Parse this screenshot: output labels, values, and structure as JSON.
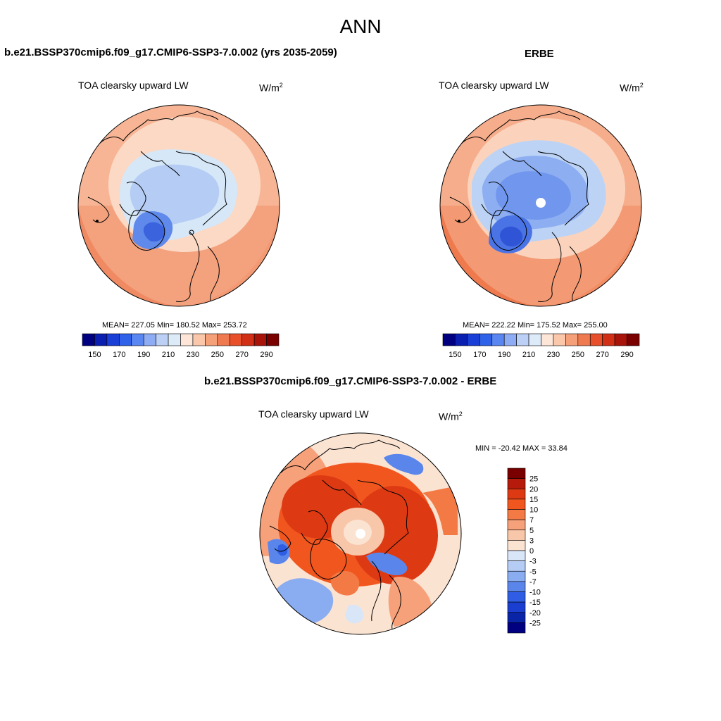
{
  "page_title": "ANN",
  "panels": [
    {
      "title": "b.e21.BSSP370cmip6.f09_g17.CMIP6-SSP3-7.0.002 (yrs 2035-2059)",
      "variable": "TOA clearsky upward LW",
      "units_base": "W/m",
      "units_exp": "2",
      "stats": "MEAN= 227.05  Min= 180.52  Max= 253.72",
      "colorbar_labels": [
        "150",
        "170",
        "190",
        "210",
        "230",
        "250",
        "270",
        "290"
      ]
    },
    {
      "title": "ERBE",
      "variable": "TOA clearsky upward LW",
      "units_base": "W/m",
      "units_exp": "2",
      "stats": "MEAN= 222.22  Min= 175.52  Max= 255.00",
      "colorbar_labels": [
        "150",
        "170",
        "190",
        "210",
        "230",
        "250",
        "270",
        "290"
      ]
    },
    {
      "title": "b.e21.BSSP370cmip6.f09_g17.CMIP6-SSP3-7.0.002 - ERBE",
      "variable": "TOA clearsky upward LW",
      "units_base": "W/m",
      "units_exp": "2",
      "stats": "MIN = -20.42 MAX =  33.84",
      "colorbar_labels": [
        "25",
        "20",
        "15",
        "10",
        "7",
        "5",
        "3",
        "0",
        "-3",
        "-5",
        "-7",
        "-10",
        "-15",
        "-20",
        "-25"
      ]
    }
  ],
  "colors": {
    "abs_scale": [
      "#000080",
      "#0a1fb0",
      "#1a3fd6",
      "#2f62e8",
      "#5a86f2",
      "#8eacf4",
      "#bcd0f6",
      "#ddeaf8",
      "#fde5d8",
      "#fbc7aa",
      "#f6a07a",
      "#f07a50",
      "#e8502c",
      "#d23016",
      "#a8140a",
      "#7a0000"
    ],
    "diff_scale": [
      "#7a0000",
      "#b51a0a",
      "#dd3a14",
      "#f2561f",
      "#f37a45",
      "#f6a17a",
      "#f8c6a8",
      "#fbe3d2",
      "#d9e6f8",
      "#b5ccf5",
      "#8aacf1",
      "#5a86ec",
      "#2f5ee4",
      "#1a3fd0",
      "#0a24a8",
      "#000080"
    ]
  }
}
